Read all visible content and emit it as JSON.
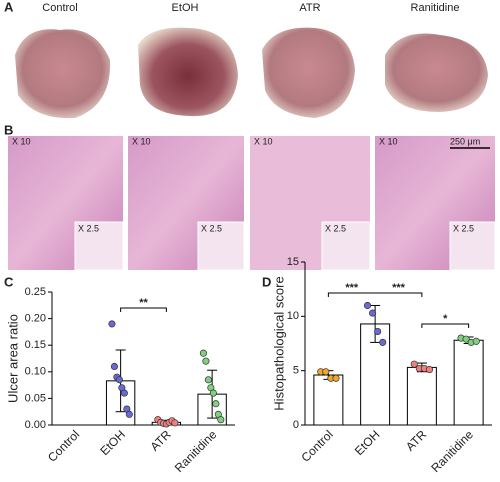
{
  "panel_labels": [
    "A",
    "B",
    "C",
    "D"
  ],
  "photo_labels": [
    "Control",
    "EtOH",
    "ATR",
    "Ranitidine"
  ],
  "histology": {
    "magnification": "X 10",
    "inset_magnification": "X 2.5",
    "scale_bar": "250 μm"
  },
  "chart_data": [
    {
      "type": "bar",
      "ylabel": "Ulcer area ratio",
      "categories": [
        "Control",
        "EtOH",
        "ATR",
        "Ranitidine"
      ],
      "values": [
        0,
        0.083,
        0.005,
        0.058
      ],
      "errors": [
        0,
        0.058,
        0.004,
        0.045
      ],
      "points": [
        [],
        [
          0.19,
          0.11,
          0.09,
          0.085,
          0.07,
          0.06,
          0.03,
          0.02
        ],
        [
          0.01,
          0.005,
          0.003,
          0.002,
          0.005,
          0.008,
          0.004
        ],
        [
          0.135,
          0.12,
          0.085,
          0.07,
          0.06,
          0.04,
          0.02,
          0.01
        ]
      ],
      "point_colors": [
        "#f5a623",
        "#6a6ad6",
        "#f08080",
        "#7fd07f"
      ],
      "ylim": [
        0,
        0.25
      ],
      "yticks": [
        {
          "value": 0,
          "label": "0.00"
        },
        {
          "value": 0.05,
          "label": "0.05"
        },
        {
          "value": 0.1,
          "label": "0.10"
        },
        {
          "value": 0.15,
          "label": "0.15"
        },
        {
          "value": 0.2,
          "label": "0.20"
        },
        {
          "value": 0.25,
          "label": "0.25"
        }
      ],
      "annotations": [
        "**"
      ]
    },
    {
      "type": "bar",
      "ylabel": "Histopathological score",
      "categories": [
        "Control",
        "EtOH",
        "ATR",
        "Ranitidine"
      ],
      "values": [
        4.6,
        9.3,
        5.3,
        7.8
      ],
      "errors": [
        0.4,
        1.7,
        0.4,
        0.3
      ],
      "points": [
        [
          4.9,
          4.9,
          4.3,
          4.3
        ],
        [
          11,
          10.3,
          8.6,
          7.6
        ],
        [
          5.6,
          5.2,
          5.2,
          5.1
        ],
        [
          8.0,
          7.9,
          7.6,
          7.7
        ]
      ],
      "point_colors": [
        "#f5a623",
        "#6a6ad6",
        "#f08080",
        "#7fd07f"
      ],
      "ylim": [
        0,
        15
      ],
      "yticks": [
        0,
        5,
        10,
        15
      ],
      "annotations": [
        "***",
        "***",
        "*"
      ]
    }
  ]
}
